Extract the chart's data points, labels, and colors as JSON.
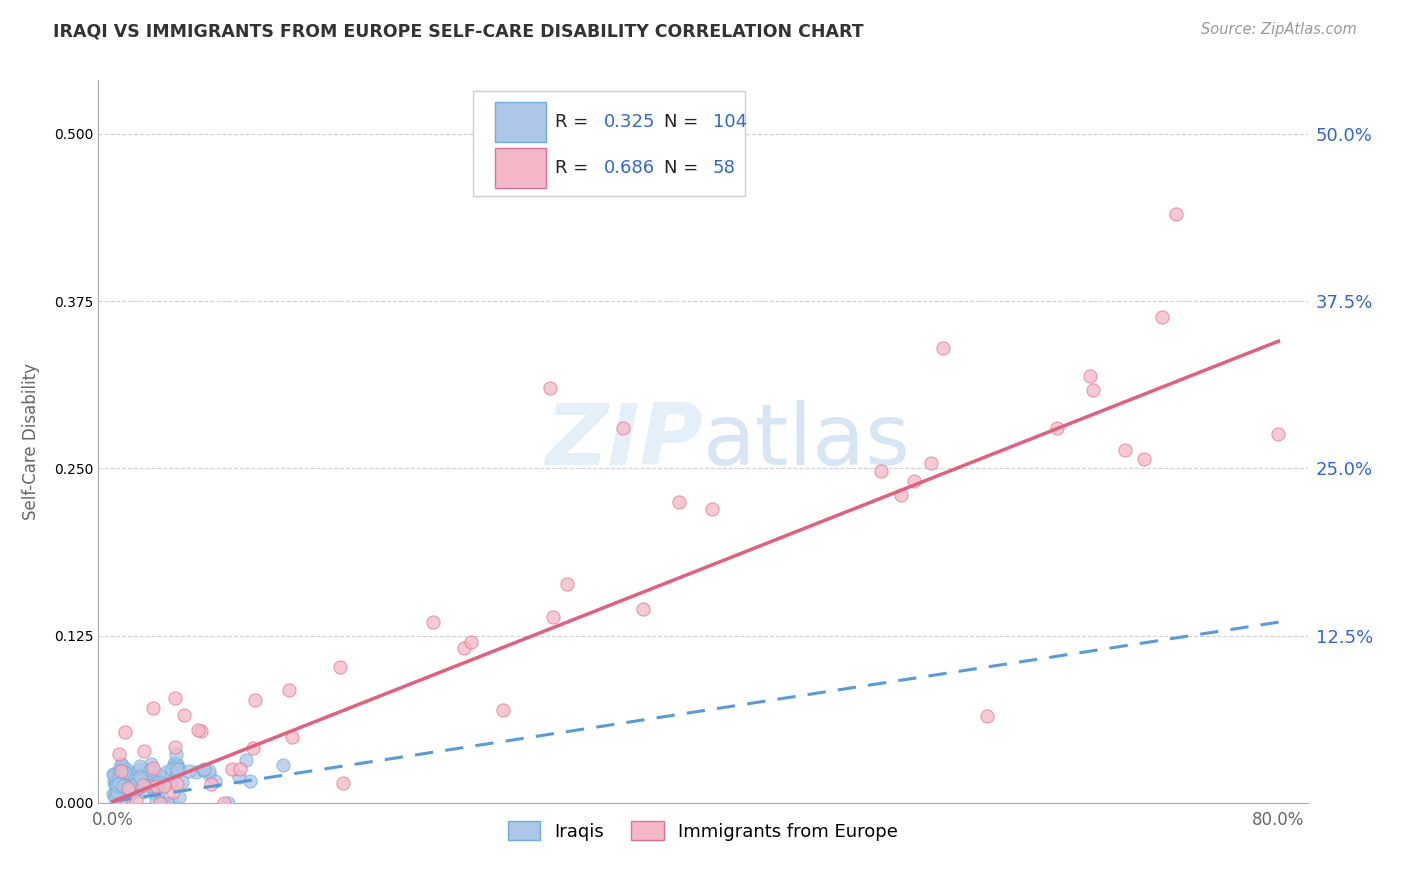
{
  "title": "IRAQI VS IMMIGRANTS FROM EUROPE SELF-CARE DISABILITY CORRELATION CHART",
  "source": "Source: ZipAtlas.com",
  "ylabel": "Self-Care Disability",
  "xlim": [
    -0.01,
    0.82
  ],
  "ylim": [
    0.0,
    0.54
  ],
  "xticks": [
    0.0,
    0.8
  ],
  "xticklabels": [
    "0.0%",
    "80.0%"
  ],
  "yticks": [
    0.125,
    0.25,
    0.375,
    0.5
  ],
  "yticklabels": [
    "12.5%",
    "25.0%",
    "37.5%",
    "50.0%"
  ],
  "series1_name": "Iraqis",
  "series1_color": "#aec6e8",
  "series1_edge": "#6baed6",
  "series1_line_color": "#5b9bd5",
  "series1_R": 0.325,
  "series1_N": 104,
  "series2_name": "Immigrants from Europe",
  "series2_color": "#f4b8c8",
  "series2_edge": "#e07090",
  "series2_line_color": "#e06080",
  "series2_R": 0.686,
  "series2_N": 58,
  "background_color": "#ffffff",
  "grid_color": "#cccccc",
  "title_color": "#333333",
  "source_color": "#999999",
  "legend_R_color": "#3366cc",
  "trendline1_x0": 0.0,
  "trendline1_y0": 0.001,
  "trendline1_x1": 0.8,
  "trendline1_y1": 0.135,
  "trendline2_x0": 0.0,
  "trendline2_y0": 0.001,
  "trendline2_x1": 0.8,
  "trendline2_y1": 0.345
}
